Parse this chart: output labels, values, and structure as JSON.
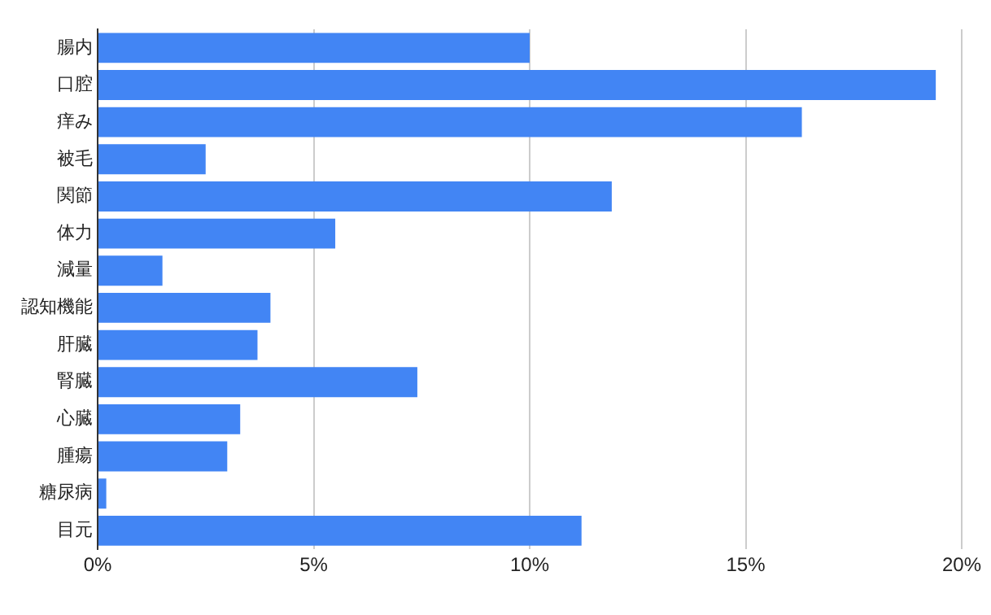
{
  "chart_data": {
    "type": "bar",
    "orientation": "horizontal",
    "categories": [
      "腸内",
      "口腔",
      "痒み",
      "被毛",
      "関節",
      "体力",
      "減量",
      "認知機能",
      "肝臓",
      "腎臓",
      "心臓",
      "腫瘍",
      "糖尿病",
      "目元"
    ],
    "values": [
      10.0,
      19.4,
      16.3,
      2.5,
      11.9,
      5.5,
      1.5,
      4.0,
      3.7,
      7.4,
      3.3,
      3.0,
      0.2,
      11.2
    ],
    "color": "#4285f4",
    "xlim": [
      0,
      20
    ],
    "xticks": [
      {
        "value": 0,
        "label": "0%"
      },
      {
        "value": 5,
        "label": "5%"
      },
      {
        "value": 10,
        "label": "10%"
      },
      {
        "value": 15,
        "label": "15%"
      },
      {
        "value": 20,
        "label": "20%"
      }
    ],
    "grid": "x",
    "legend": false
  }
}
